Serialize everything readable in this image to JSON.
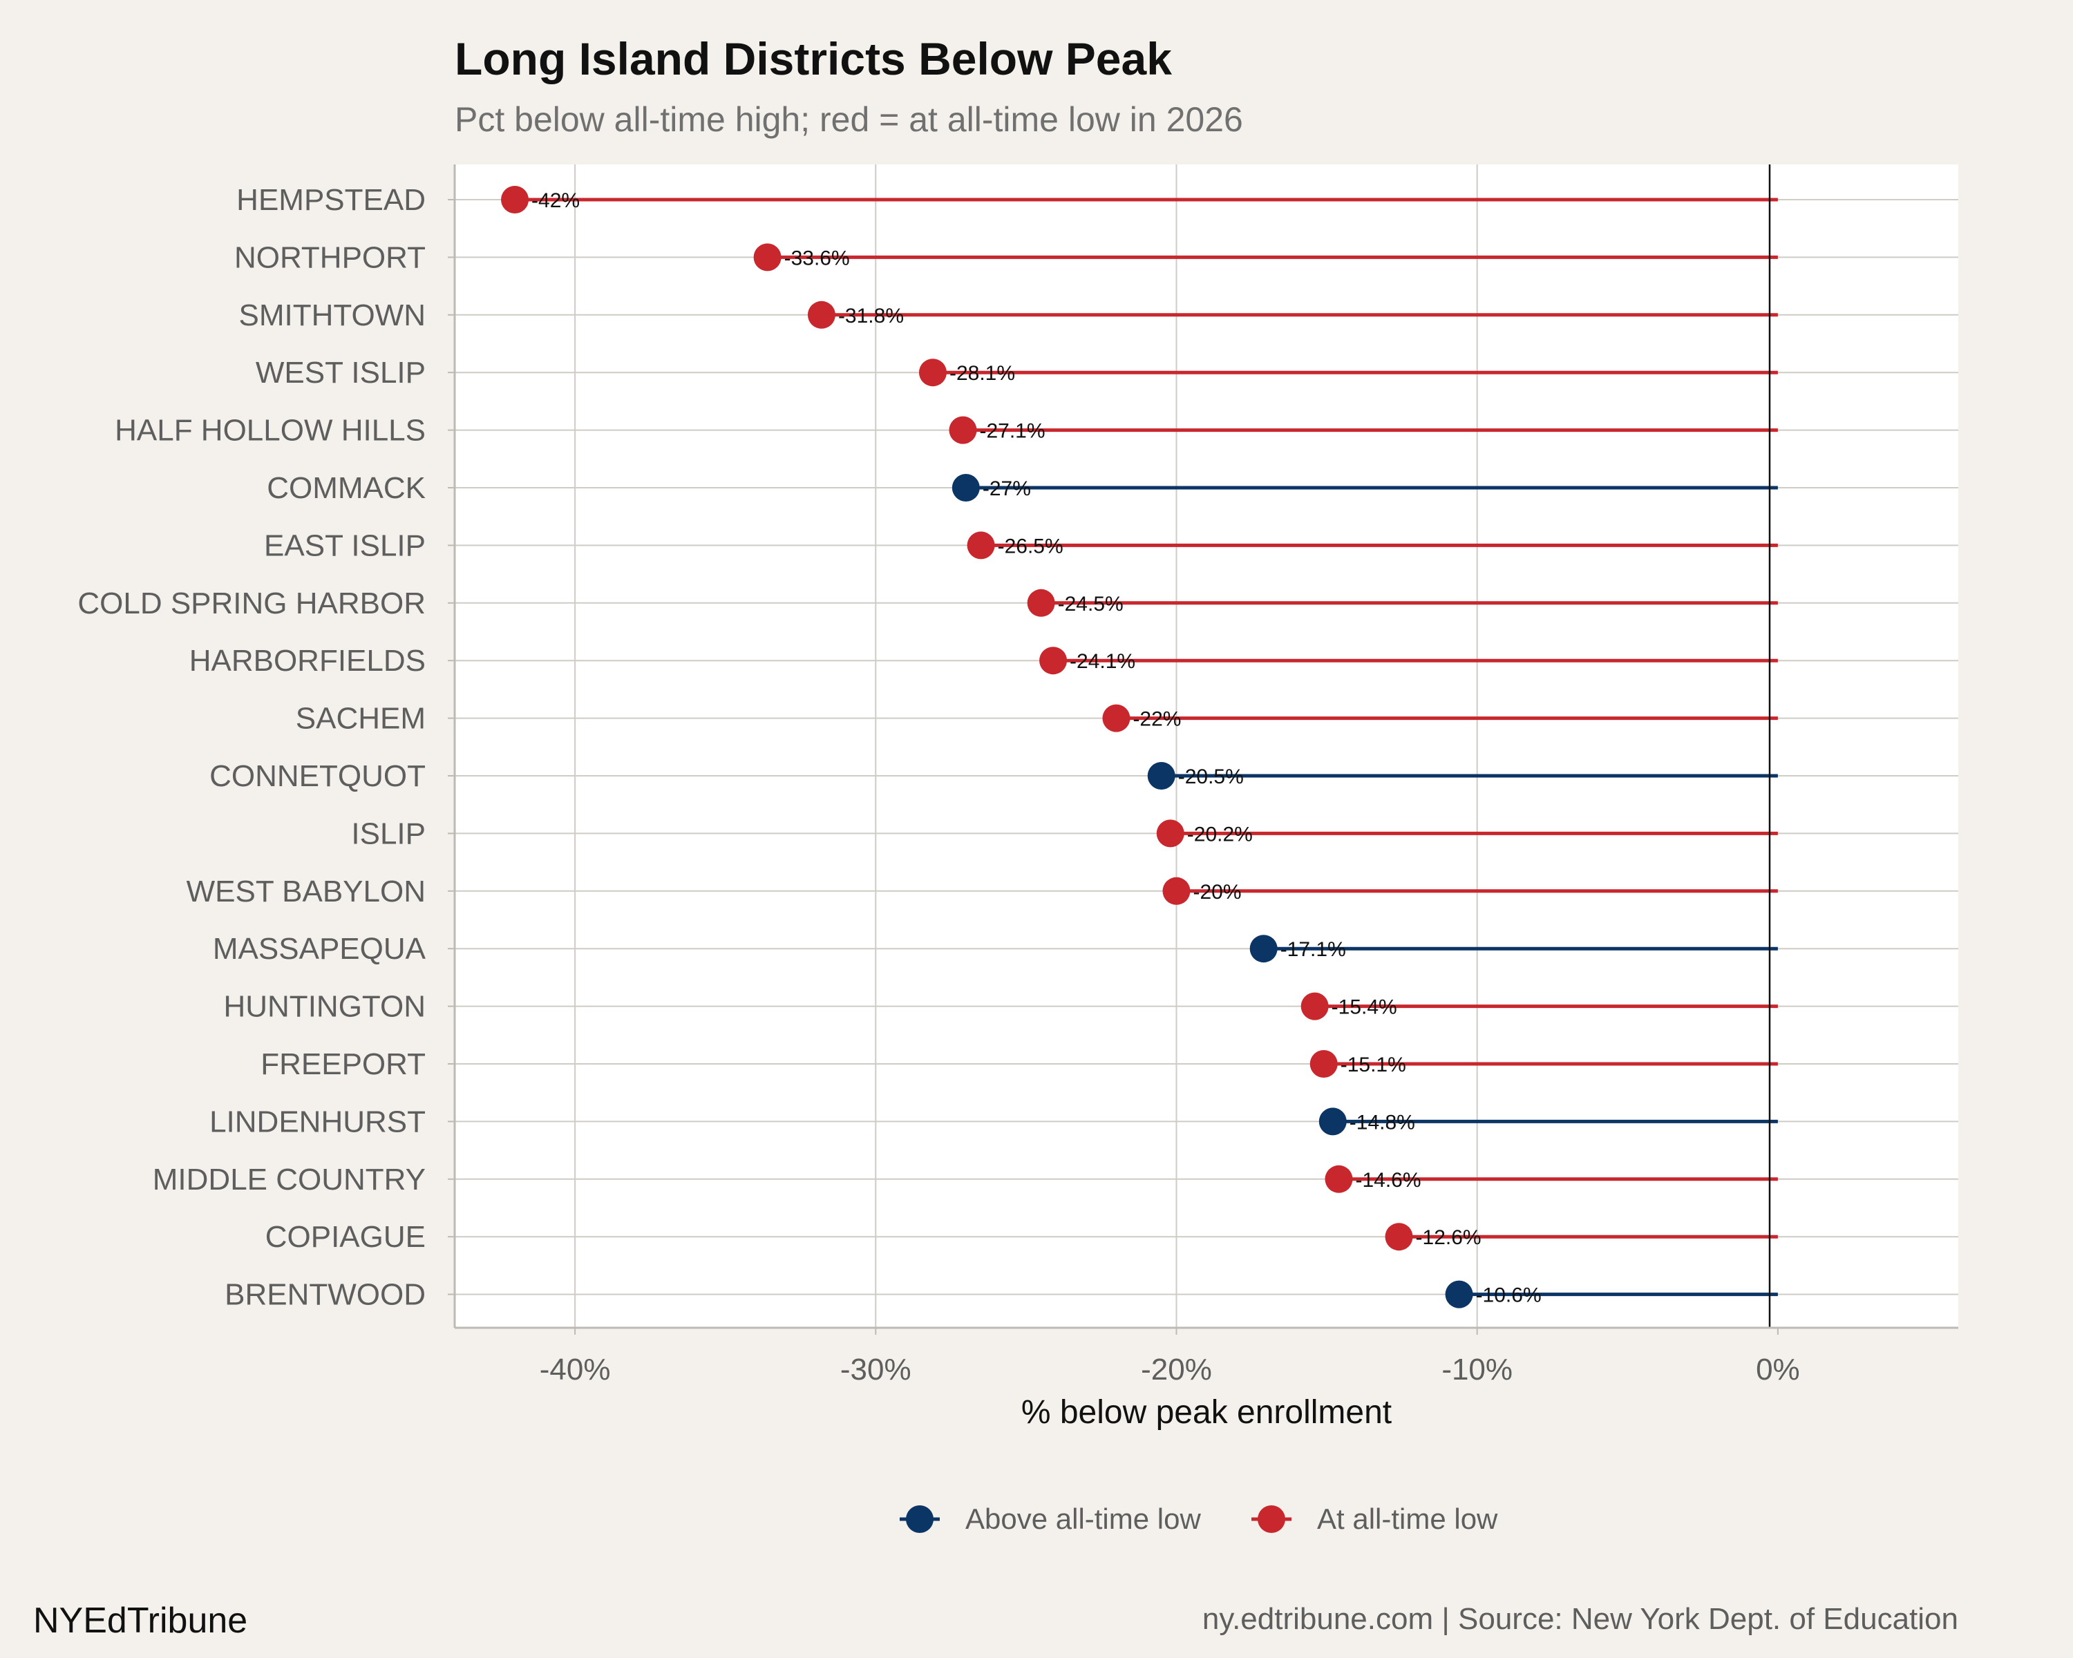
{
  "chart_data": {
    "type": "lollipop",
    "title": "Long Island Districts Below Peak",
    "subtitle": "Pct below all-time high; red = at all-time low in 2026",
    "xlabel": "% below peak enrollment",
    "ylabel": "",
    "xlim": [
      -44,
      6
    ],
    "xticks": [
      -40,
      -30,
      -20,
      -10,
      0
    ],
    "xtick_labels": [
      "-40%",
      "-30%",
      "-20%",
      "-10%",
      "0%"
    ],
    "grid": true,
    "legend_position": "bottom",
    "legend": [
      {
        "name": "Above all-time low",
        "color": "#0b3565"
      },
      {
        "name": "At all-time low",
        "color": "#c8282d"
      }
    ],
    "points": [
      {
        "name": "HEMPSTEAD",
        "value": -42,
        "label": "-42%",
        "at_low": true
      },
      {
        "name": "NORTHPORT",
        "value": -33.6,
        "label": "-33.6%",
        "at_low": true
      },
      {
        "name": "SMITHTOWN",
        "value": -31.8,
        "label": "-31.8%",
        "at_low": true
      },
      {
        "name": "WEST ISLIP",
        "value": -28.1,
        "label": "-28.1%",
        "at_low": true
      },
      {
        "name": "HALF HOLLOW HILLS",
        "value": -27.1,
        "label": "-27.1%",
        "at_low": true
      },
      {
        "name": "COMMACK",
        "value": -27,
        "label": "-27%",
        "at_low": false
      },
      {
        "name": "EAST ISLIP",
        "value": -26.5,
        "label": "-26.5%",
        "at_low": true
      },
      {
        "name": "COLD SPRING HARBOR",
        "value": -24.5,
        "label": "-24.5%",
        "at_low": true
      },
      {
        "name": "HARBORFIELDS",
        "value": -24.1,
        "label": "-24.1%",
        "at_low": true
      },
      {
        "name": "SACHEM",
        "value": -22,
        "label": "-22%",
        "at_low": true
      },
      {
        "name": "CONNETQUOT",
        "value": -20.5,
        "label": "-20.5%",
        "at_low": false
      },
      {
        "name": "ISLIP",
        "value": -20.2,
        "label": "-20.2%",
        "at_low": true
      },
      {
        "name": "WEST BABYLON",
        "value": -20,
        "label": "-20%",
        "at_low": true
      },
      {
        "name": "MASSAPEQUA",
        "value": -17.1,
        "label": "-17.1%",
        "at_low": false
      },
      {
        "name": "HUNTINGTON",
        "value": -15.4,
        "label": "-15.4%",
        "at_low": true
      },
      {
        "name": "FREEPORT",
        "value": -15.1,
        "label": "-15.1%",
        "at_low": true
      },
      {
        "name": "LINDENHURST",
        "value": -14.8,
        "label": "-14.8%",
        "at_low": false
      },
      {
        "name": "MIDDLE COUNTRY",
        "value": -14.6,
        "label": "-14.6%",
        "at_low": true
      },
      {
        "name": "COPIAGUE",
        "value": -12.6,
        "label": "-12.6%",
        "at_low": true
      },
      {
        "name": "BRENTWOOD",
        "value": -10.6,
        "label": "-10.6%",
        "at_low": false
      }
    ]
  },
  "colors": {
    "above_low": "#0b3565",
    "at_low": "#c8282d",
    "background": "#f4f1ec",
    "panel": "#ffffff",
    "grid": "#cfccc6"
  },
  "footer": {
    "brand": "NYEdTribune",
    "source": "ny.edtribune.com | Source: New York Dept. of Education"
  }
}
